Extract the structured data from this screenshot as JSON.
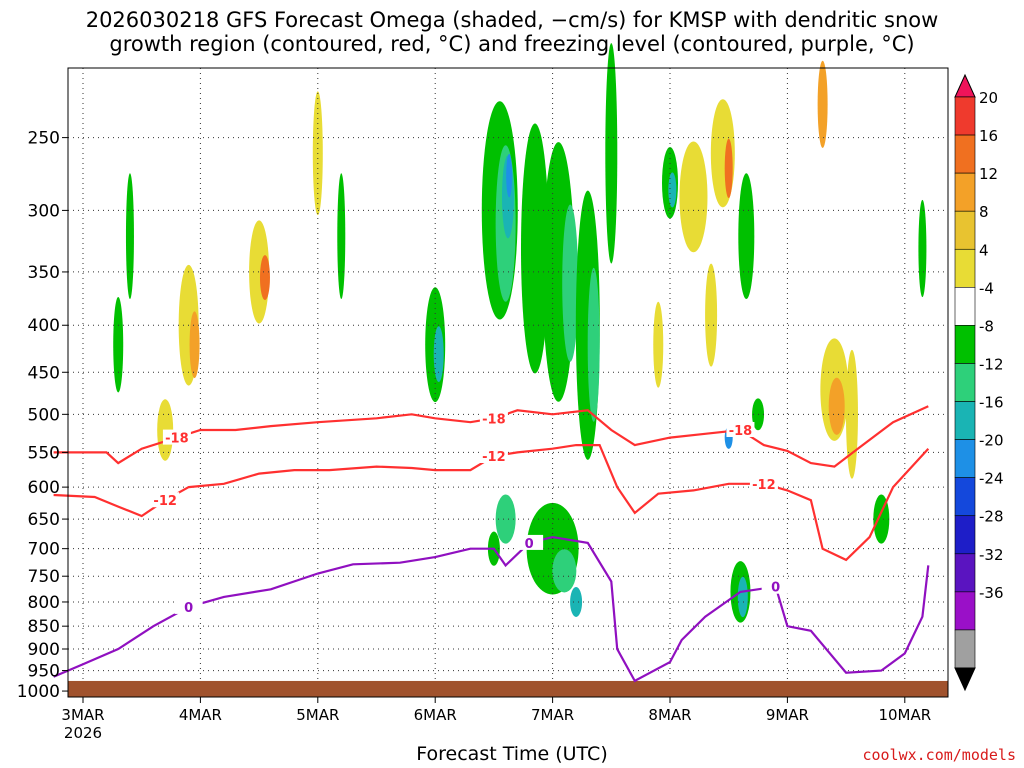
{
  "chart_data": {
    "type": "heatmap",
    "title_line1": "2026030218 GFS Forecast Omega (shaded, −cm/s) for KMSP with dendritic snow",
    "title_line2": "growth region (contoured, red, °C) and freezing level (contoured, purple, °C)",
    "xlabel": "Forecast Time (UTC)",
    "year_label": "2026",
    "x_ticks": [
      "3MAR",
      "4MAR",
      "5MAR",
      "6MAR",
      "7MAR",
      "8MAR",
      "9MAR",
      "10MAR"
    ],
    "y_ticks": [
      250,
      300,
      350,
      400,
      450,
      500,
      550,
      600,
      650,
      700,
      750,
      800,
      850,
      900,
      950,
      1000
    ],
    "ylim_hPa": [
      1000,
      200
    ],
    "x_range_days": [
      2.75,
      10.2
    ],
    "colorbar": {
      "labels": [
        20,
        16,
        12,
        8,
        4,
        -4,
        -8,
        -12,
        -16,
        -20,
        -24,
        -28,
        -32,
        -36
      ],
      "colors": [
        "#f0145a",
        "#ef3a2d",
        "#f07020",
        "#f3a128",
        "#e8c330",
        "#e8dc35",
        "#ffffff",
        "#00c000",
        "#2ed07a",
        "#1ab4b4",
        "#1e90e6",
        "#1448dc",
        "#1e1ec8",
        "#5a14c0",
        "#9a10c8",
        "#a0a0a0",
        "#000000"
      ]
    },
    "contours": [
      {
        "name": "-18",
        "color": "#ff3030",
        "label": "-18",
        "points": [
          [
            2.75,
            550
          ],
          [
            3.2,
            550
          ],
          [
            3.3,
            565
          ],
          [
            3.5,
            545
          ],
          [
            3.8,
            530
          ],
          [
            4.0,
            520
          ],
          [
            4.3,
            520
          ],
          [
            4.6,
            515
          ],
          [
            5.0,
            510
          ],
          [
            5.5,
            505
          ],
          [
            5.8,
            500
          ],
          [
            6.0,
            505
          ],
          [
            6.3,
            510
          ],
          [
            6.5,
            505
          ],
          [
            6.7,
            495
          ],
          [
            7.0,
            500
          ],
          [
            7.3,
            495
          ],
          [
            7.5,
            520
          ],
          [
            7.7,
            540
          ],
          [
            8.0,
            530
          ],
          [
            8.3,
            525
          ],
          [
            8.6,
            520
          ],
          [
            8.8,
            540
          ],
          [
            9.0,
            548
          ],
          [
            9.2,
            565
          ],
          [
            9.4,
            570
          ],
          [
            9.6,
            545
          ],
          [
            9.9,
            510
          ],
          [
            10.2,
            490
          ]
        ]
      },
      {
        "name": "-12",
        "color": "#ff3030",
        "label": "-12",
        "points": [
          [
            2.75,
            612
          ],
          [
            3.1,
            615
          ],
          [
            3.3,
            630
          ],
          [
            3.5,
            645
          ],
          [
            3.7,
            620
          ],
          [
            3.9,
            600
          ],
          [
            4.2,
            595
          ],
          [
            4.5,
            580
          ],
          [
            4.8,
            575
          ],
          [
            5.1,
            575
          ],
          [
            5.5,
            570
          ],
          [
            5.8,
            572
          ],
          [
            6.0,
            575
          ],
          [
            6.3,
            575
          ],
          [
            6.5,
            555
          ],
          [
            6.7,
            550
          ],
          [
            7.0,
            545
          ],
          [
            7.2,
            540
          ],
          [
            7.4,
            540
          ],
          [
            7.55,
            600
          ],
          [
            7.7,
            640
          ],
          [
            7.9,
            610
          ],
          [
            8.2,
            605
          ],
          [
            8.5,
            595
          ],
          [
            8.8,
            595
          ],
          [
            9.0,
            605
          ],
          [
            9.2,
            620
          ],
          [
            9.3,
            700
          ],
          [
            9.5,
            720
          ],
          [
            9.7,
            680
          ],
          [
            9.9,
            600
          ],
          [
            10.2,
            545
          ]
        ]
      },
      {
        "name": "0",
        "color": "#9010c0",
        "label": "0",
        "points": [
          [
            2.75,
            965
          ],
          [
            3.0,
            935
          ],
          [
            3.3,
            900
          ],
          [
            3.6,
            850
          ],
          [
            3.9,
            810
          ],
          [
            4.2,
            790
          ],
          [
            4.6,
            775
          ],
          [
            5.0,
            745
          ],
          [
            5.3,
            728
          ],
          [
            5.7,
            725
          ],
          [
            6.0,
            715
          ],
          [
            6.3,
            700
          ],
          [
            6.5,
            700
          ],
          [
            6.6,
            730
          ],
          [
            6.8,
            690
          ],
          [
            7.0,
            680
          ],
          [
            7.3,
            690
          ],
          [
            7.5,
            760
          ],
          [
            7.55,
            900
          ],
          [
            7.7,
            975
          ],
          [
            8.0,
            930
          ],
          [
            8.1,
            880
          ],
          [
            8.3,
            830
          ],
          [
            8.6,
            780
          ],
          [
            8.9,
            770
          ],
          [
            9.0,
            850
          ],
          [
            9.2,
            860
          ],
          [
            9.5,
            955
          ],
          [
            9.8,
            950
          ],
          [
            10.0,
            910
          ],
          [
            10.15,
            830
          ],
          [
            10.2,
            730
          ]
        ]
      }
    ]
  },
  "credit": "coolwx.com/models"
}
